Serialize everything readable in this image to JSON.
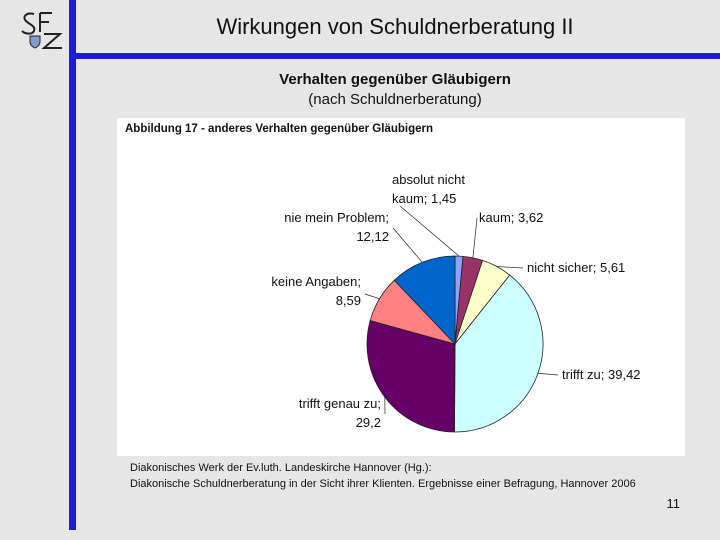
{
  "slide": {
    "title": "Wirkungen von Schuldnerberatung II",
    "subtitle_line1": "Verhalten gegenüber Gläubigern",
    "subtitle_line2": "(nach Schuldnerberatung)",
    "source_line1": "Diakonisches Werk der Ev.luth. Landeskirche Hannover (Hg.):",
    "source_line2": "Diakonische Schuldnerberatung in der Sicht ihrer Klienten. Ergebnisse einer Befragung, Hannover 2006",
    "page_number": "11",
    "logo": "SFZ",
    "brand_color": "#1b1bd8"
  },
  "chart_data": {
    "type": "pie",
    "title": "Abbildung 17 - anderes Verhalten gegenüber Gläubigern",
    "slices": [
      {
        "name": "absolut nicht kaum",
        "value": 1.45,
        "label_line1": "absolut nicht",
        "label_line2": "kaum; 1,45",
        "color": "#8aa4ff"
      },
      {
        "name": "kaum",
        "value": 3.62,
        "label_line1": "kaum; 3,62",
        "label_line2": "",
        "color": "#993366"
      },
      {
        "name": "nicht sicher",
        "value": 5.61,
        "label_line1": "nicht sicher; 5,61",
        "label_line2": "",
        "color": "#ffffcc"
      },
      {
        "name": "trifft zu",
        "value": 39.42,
        "label_line1": "trifft zu; 39,42",
        "label_line2": "",
        "color": "#ccffff"
      },
      {
        "name": "trifft genau zu",
        "value": 29.2,
        "label_line1": "trifft genau zu;",
        "label_line2": "29,2",
        "color": "#660066"
      },
      {
        "name": "keine Angaben",
        "value": 8.59,
        "label_line1": "keine Angaben;",
        "label_line2": "8,59",
        "color": "#ff8080"
      },
      {
        "name": "nie mein Problem",
        "value": 12.12,
        "label_line1": "nie mein Problem;",
        "label_line2": "12,12",
        "color": "#0066cc"
      }
    ]
  }
}
